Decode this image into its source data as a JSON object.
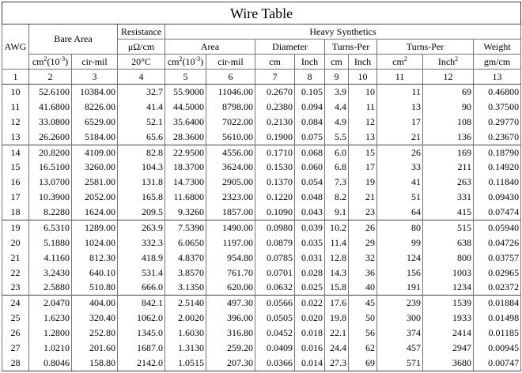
{
  "title": "Wire Table",
  "header": {
    "awg": "AWG",
    "bare_area": "Bare Area",
    "resistance": "Resistance",
    "resistance_unit": "μΩ/cm",
    "resistance_temp": "20°C",
    "heavy_synthetics": "Heavy Synthetics",
    "area": "Area",
    "diameter": "Diameter",
    "turns_per_1": "Turns-Per",
    "turns_per_2": "Turns-Per",
    "weight": "Weight",
    "units": {
      "bare_cm2_base": "cm",
      "bare_cm2_sup": "2",
      "bare_cm2_suffix": "(10",
      "bare_cm2_exp": "-3",
      "bare_cm2_close": ")",
      "bare_cirmil": "cir-mil",
      "area_cm2_base": "cm",
      "area_cm2_sup": "2",
      "area_cm2_suffix": "(10",
      "area_cm2_exp": "-3",
      "area_cm2_close": ")",
      "area_cirmil": "cir-mil",
      "dia_cm": "cm",
      "dia_inch": "Inch",
      "tp_cm": "cm",
      "tp_inch": "Inch",
      "tp_cm2_base": "cm",
      "tp_cm2_sup": "2",
      "tp_inch2_base": "Inch",
      "tp_inch2_sup": "2",
      "weight_unit": "gm/cm"
    },
    "col_index": [
      "1",
      "2",
      "3",
      "4",
      "5",
      "6",
      "7",
      "8",
      "9",
      "10",
      "11",
      "12",
      "13"
    ]
  },
  "rows": [
    [
      "10",
      "52.6100",
      "10384.00",
      "32.7",
      "55.9000",
      "11046.00",
      "0.2670",
      "0.105",
      "3.9",
      "10",
      "11",
      "69",
      "0.46800"
    ],
    [
      "11",
      "41.6800",
      "8226.00",
      "41.4",
      "44.5000",
      "8798.00",
      "0.2380",
      "0.094",
      "4.4",
      "11",
      "13",
      "90",
      "0.37500"
    ],
    [
      "12",
      "33.0800",
      "6529.00",
      "52.1",
      "35.6400",
      "7022.00",
      "0.2130",
      "0.084",
      "4.9",
      "12",
      "17",
      "108",
      "0.29770"
    ],
    [
      "13",
      "26.2600",
      "5184.00",
      "65.6",
      "28.3600",
      "5610.00",
      "0.1900",
      "0.075",
      "5.5",
      "13",
      "21",
      "136",
      "0.23670"
    ],
    [
      "14",
      "20.8200",
      "4109.00",
      "82.8",
      "22.9500",
      "4556.00",
      "0.1710",
      "0.068",
      "6.0",
      "15",
      "26",
      "169",
      "0.18790"
    ],
    [
      "15",
      "16.5100",
      "3260.00",
      "104.3",
      "18.3700",
      "3624.00",
      "0.1530",
      "0.060",
      "6.8",
      "17",
      "33",
      "211",
      "0.14920"
    ],
    [
      "16",
      "13.0700",
      "2581.00",
      "131.8",
      "14.7300",
      "2905.00",
      "0.1370",
      "0.054",
      "7.3",
      "19",
      "41",
      "263",
      "0.11840"
    ],
    [
      "17",
      "10.3900",
      "2052.00",
      "165.8",
      "11.6800",
      "2323.00",
      "0.1220",
      "0.048",
      "8.2",
      "21",
      "51",
      "331",
      "0.09430"
    ],
    [
      "18",
      "8.2280",
      "1624.00",
      "209.5",
      "9.3260",
      "1857.00",
      "0.1090",
      "0.043",
      "9.1",
      "23",
      "64",
      "415",
      "0.07474"
    ],
    [
      "19",
      "6.5310",
      "1289.00",
      "263.9",
      "7.5390",
      "1490.00",
      "0.0980",
      "0.039",
      "10.2",
      "26",
      "80",
      "515",
      "0.05940"
    ],
    [
      "20",
      "5.1880",
      "1024.00",
      "332.3",
      "6.0650",
      "1197.00",
      "0.0879",
      "0.035",
      "11.4",
      "29",
      "99",
      "638",
      "0.04726"
    ],
    [
      "21",
      "4.1160",
      "812.30",
      "418.9",
      "4.8370",
      "954.80",
      "0.0785",
      "0.031",
      "12.8",
      "32",
      "124",
      "800",
      "0.03757"
    ],
    [
      "22",
      "3.2430",
      "640.10",
      "531.4",
      "3.8570",
      "761.70",
      "0.0701",
      "0.028",
      "14.3",
      "36",
      "156",
      "1003",
      "0.02965"
    ],
    [
      "23",
      "2.5880",
      "510.80",
      "666.0",
      "3.1350",
      "620.00",
      "0.0632",
      "0.025",
      "15.8",
      "40",
      "191",
      "1234",
      "0.02372"
    ],
    [
      "24",
      "2.0470",
      "404.00",
      "842.1",
      "2.5140",
      "497.30",
      "0.0566",
      "0.022",
      "17.6",
      "45",
      "239",
      "1539",
      "0.01884"
    ],
    [
      "25",
      "1.6230",
      "320.40",
      "1062.0",
      "2.0020",
      "396.00",
      "0.0505",
      "0.020",
      "19.8",
      "50",
      "300",
      "1933",
      "0.01498"
    ],
    [
      "26",
      "1.2800",
      "252.80",
      "1345.0",
      "1.6030",
      "316.80",
      "0.0452",
      "0.018",
      "22.1",
      "56",
      "374",
      "2414",
      "0.01185"
    ],
    [
      "27",
      "1.0210",
      "201.60",
      "1687.0",
      "1.3130",
      "259.20",
      "0.0409",
      "0.016",
      "24.4",
      "62",
      "457",
      "2947",
      "0.00945"
    ],
    [
      "28",
      "0.8046",
      "158.80",
      "2142.0",
      "1.0515",
      "207.30",
      "0.0366",
      "0.014",
      "27.3",
      "69",
      "571",
      "3680",
      "0.00747"
    ]
  ]
}
